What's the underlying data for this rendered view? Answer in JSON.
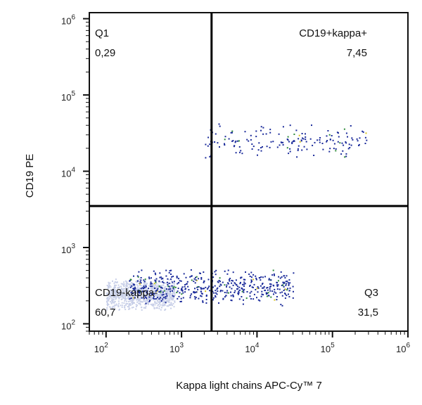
{
  "chart_data": {
    "type": "scatter",
    "title": "",
    "xlabel": "Kappa light chains APC-Cy™ 7",
    "ylabel": "CD19 PE",
    "x_scale": "log",
    "y_scale": "log",
    "xlim": [
      60,
      1000000
    ],
    "ylim": [
      80,
      1200000
    ],
    "x_ticks": [
      {
        "base": "10",
        "exp": "2",
        "value": 100
      },
      {
        "base": "10",
        "exp": "3",
        "value": 1000
      },
      {
        "base": "10",
        "exp": "4",
        "value": 10000
      },
      {
        "base": "10",
        "exp": "5",
        "value": 100000
      },
      {
        "base": "10",
        "exp": "6",
        "value": 1000000
      }
    ],
    "y_ticks": [
      {
        "base": "10",
        "exp": "2",
        "value": 100
      },
      {
        "base": "10",
        "exp": "3",
        "value": 1000
      },
      {
        "base": "10",
        "exp": "4",
        "value": 10000
      },
      {
        "base": "10",
        "exp": "5",
        "value": 100000
      },
      {
        "base": "10",
        "exp": "6",
        "value": 1000000
      }
    ],
    "gates": {
      "x_threshold": 2500,
      "y_threshold": 3500
    },
    "quadrants": [
      {
        "name": "Q1",
        "value": "0,29",
        "position": "top-left"
      },
      {
        "name": "CD19+kappa+",
        "value": "7,45",
        "position": "top-right"
      },
      {
        "name": "CD19-kappa-",
        "value": "60,7",
        "position": "bottom-left"
      },
      {
        "name": "Q3",
        "value": "31,5",
        "position": "bottom-right"
      }
    ],
    "populations": [
      {
        "x_range": [
          100,
          800
        ],
        "y_range": [
          150,
          400
        ],
        "density": "very high",
        "color": "#c8cfe8"
      },
      {
        "x_range": [
          200,
          30000
        ],
        "y_range": [
          170,
          550
        ],
        "density": "high",
        "color": "#1a2a9a"
      },
      {
        "x_range": [
          2000,
          300000
        ],
        "y_range": [
          14000,
          45000
        ],
        "density": "medium",
        "color": "#1a2a9a"
      }
    ],
    "colors": {
      "low_density": "#c8cfe8",
      "medium_density": "#1a2a9a",
      "high_density": "#2e8a3a",
      "peak_density": "#d7c31d"
    },
    "grid": false,
    "legend": "none"
  }
}
